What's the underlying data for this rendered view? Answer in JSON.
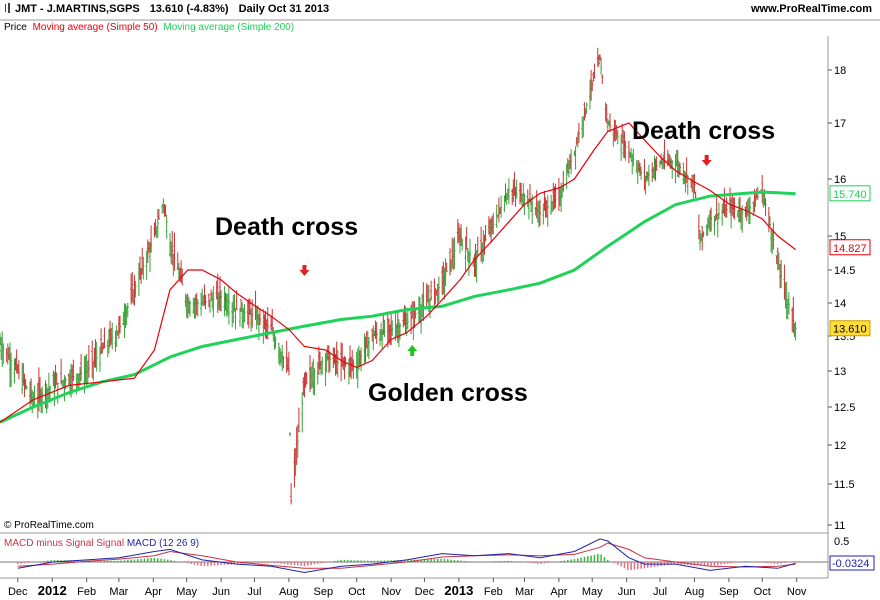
{
  "header": {
    "symbol": "JMT - J.MARTINS,SGPS",
    "quote": "13.610 (-4.83%)",
    "period": "Daily  Oct 31 2013",
    "site": "www.ProRealTime.com"
  },
  "legend": {
    "price": "Price",
    "ma50": "Moving average (Simple 50)",
    "ma200": "Moving average (Simple 200)"
  },
  "copyright": "© ProRealTime.com",
  "macd_legend": {
    "hist": "MACD minus Signal Signal",
    "macd": "MACD (12 26 9)"
  },
  "annotations": {
    "death1": "Death cross",
    "golden": "Golden cross",
    "death2": "Death cross"
  },
  "colors": {
    "ma50": "#e8000b",
    "ma200": "#1fd25a",
    "candle": "#c83232",
    "candle_up": "#3aa03a",
    "last_price_box": "#ffdd33",
    "ma200_label": "#1fd25a",
    "ma50_label": "#e8000b",
    "macd_line": "#2222aa",
    "signal_line": "#cc3344",
    "hist": "#33bb33"
  },
  "chart_data": [
    {
      "type": "line",
      "title": "JMT - J.MARTINS,SGPS",
      "x_ticks": [
        "Dec",
        "2012",
        "Feb",
        "Mar",
        "Apr",
        "May",
        "Jun",
        "Jul",
        "Aug",
        "Sep",
        "Oct",
        "Nov",
        "Dec",
        "2013",
        "Feb",
        "Mar",
        "Apr",
        "May",
        "Jun",
        "Jul",
        "Aug",
        "Sep",
        "Oct",
        "Nov"
      ],
      "y_ticks": [
        11,
        11.5,
        12,
        12.5,
        13,
        13.5,
        14,
        14.5,
        15,
        16,
        17,
        18
      ],
      "ylim": [
        11,
        18.6
      ],
      "series": [
        {
          "name": "Price",
          "x": [
            "2011-11-15",
            "2011-12-01",
            "2011-12-15",
            "2012-01-02",
            "2012-01-16",
            "2012-02-01",
            "2012-02-15",
            "2012-03-01",
            "2012-03-15",
            "2012-04-02",
            "2012-04-10",
            "2012-04-16",
            "2012-05-02",
            "2012-05-15",
            "2012-06-01",
            "2012-06-15",
            "2012-07-02",
            "2012-07-16",
            "2012-08-01",
            "2012-08-03",
            "2012-08-15",
            "2012-09-03",
            "2012-09-17",
            "2012-10-01",
            "2012-10-15",
            "2012-11-01",
            "2012-11-15",
            "2012-12-03",
            "2012-12-17",
            "2013-01-02",
            "2013-01-15",
            "2013-02-01",
            "2013-02-15",
            "2013-03-01",
            "2013-03-15",
            "2013-04-02",
            "2013-04-15",
            "2013-05-02",
            "2013-05-08",
            "2013-05-15",
            "2013-06-03",
            "2013-06-17",
            "2013-07-01",
            "2013-07-15",
            "2013-08-01",
            "2013-08-06",
            "2013-08-15",
            "2013-09-02",
            "2013-09-16",
            "2013-10-01",
            "2013-10-15",
            "2013-10-31"
          ],
          "values": [
            13.4,
            13.0,
            12.6,
            12.8,
            12.9,
            13.0,
            13.3,
            13.6,
            14.2,
            15.0,
            15.6,
            14.9,
            14.0,
            14.0,
            14.1,
            13.9,
            13.8,
            13.6,
            13.0,
            11.3,
            12.8,
            13.2,
            13.1,
            13.1,
            13.5,
            13.6,
            13.7,
            14.0,
            14.3,
            15.0,
            14.6,
            15.2,
            15.8,
            15.7,
            15.4,
            15.7,
            16.5,
            17.8,
            18.2,
            17.0,
            16.5,
            16.0,
            16.3,
            16.3,
            15.9,
            14.9,
            15.3,
            15.5,
            15.4,
            15.8,
            14.6,
            13.61
          ]
        },
        {
          "name": "Moving average (Simple 50)",
          "x": [
            "2011-11-15",
            "2011-12-15",
            "2012-01-16",
            "2012-02-15",
            "2012-03-15",
            "2012-04-02",
            "2012-04-16",
            "2012-05-02",
            "2012-05-15",
            "2012-06-01",
            "2012-06-15",
            "2012-07-02",
            "2012-07-16",
            "2012-08-01",
            "2012-08-15",
            "2012-09-03",
            "2012-09-17",
            "2012-10-01",
            "2012-10-15",
            "2012-11-01",
            "2012-11-15",
            "2012-12-03",
            "2012-12-17",
            "2013-01-02",
            "2013-01-15",
            "2013-02-01",
            "2013-02-15",
            "2013-03-01",
            "2013-03-15",
            "2013-04-02",
            "2013-04-15",
            "2013-05-02",
            "2013-05-15",
            "2013-06-03",
            "2013-06-17",
            "2013-07-01",
            "2013-07-15",
            "2013-08-01",
            "2013-08-15",
            "2013-09-02",
            "2013-09-16",
            "2013-10-01",
            "2013-10-15",
            "2013-10-31"
          ],
          "values": [
            12.3,
            12.6,
            12.8,
            12.85,
            12.9,
            13.3,
            14.2,
            14.5,
            14.5,
            14.35,
            14.15,
            13.95,
            13.8,
            13.6,
            13.35,
            13.3,
            13.15,
            13.05,
            13.15,
            13.45,
            13.55,
            13.8,
            14.05,
            14.35,
            14.65,
            14.95,
            15.25,
            15.55,
            15.75,
            15.85,
            16.0,
            16.5,
            16.85,
            17.0,
            16.7,
            16.4,
            16.15,
            15.95,
            15.8,
            15.55,
            15.45,
            15.3,
            15.0,
            14.8
          ]
        },
        {
          "name": "Moving average (Simple 200)",
          "x": [
            "2011-11-15",
            "2011-12-15",
            "2012-01-16",
            "2012-02-15",
            "2012-03-15",
            "2012-04-16",
            "2012-05-15",
            "2012-06-15",
            "2012-07-16",
            "2012-08-15",
            "2012-09-17",
            "2012-10-15",
            "2012-11-15",
            "2012-12-17",
            "2013-01-15",
            "2013-02-15",
            "2013-03-15",
            "2013-04-15",
            "2013-05-15",
            "2013-06-17",
            "2013-07-15",
            "2013-08-15",
            "2013-09-16",
            "2013-10-01",
            "2013-10-15",
            "2013-10-31"
          ],
          "values": [
            12.3,
            12.5,
            12.7,
            12.85,
            12.95,
            13.2,
            13.35,
            13.45,
            13.55,
            13.65,
            13.75,
            13.8,
            13.9,
            13.95,
            14.1,
            14.2,
            14.3,
            14.5,
            14.85,
            15.25,
            15.55,
            15.7,
            15.75,
            15.77,
            15.76,
            15.74
          ]
        }
      ],
      "price_labels": [
        {
          "value": 15.74,
          "label": "15.740"
        },
        {
          "value": 14.827,
          "label": "14.827"
        },
        {
          "value": 13.61,
          "label": "13.610"
        }
      ],
      "markers": [
        {
          "x": "2012-08-15",
          "direction": "down",
          "label": "Death cross"
        },
        {
          "x": "2012-11-20",
          "direction": "up",
          "label": "Golden cross"
        },
        {
          "x": "2013-08-12",
          "direction": "down",
          "label": "Death cross"
        }
      ]
    },
    {
      "type": "line",
      "title": "MACD (12 26 9)",
      "y_ticks": [
        0.5,
        0
      ],
      "ylim": [
        -0.5,
        0.7
      ],
      "last_value_label": "-0.0324",
      "series": [
        {
          "name": "MACD (12 26 9)",
          "x": [
            "2011-12-01",
            "2012-01-02",
            "2012-02-01",
            "2012-03-01",
            "2012-04-02",
            "2012-04-16",
            "2012-05-15",
            "2012-06-15",
            "2012-07-16",
            "2012-08-15",
            "2012-09-17",
            "2012-10-15",
            "2012-11-15",
            "2012-12-17",
            "2013-01-15",
            "2013-02-15",
            "2013-03-15",
            "2013-04-15",
            "2013-05-08",
            "2013-05-15",
            "2013-06-03",
            "2013-06-17",
            "2013-07-15",
            "2013-08-15",
            "2013-09-16",
            "2013-10-15",
            "2013-10-31"
          ],
          "values": [
            -0.15,
            0.0,
            0.05,
            0.1,
            0.25,
            0.3,
            0.05,
            -0.05,
            -0.1,
            -0.25,
            -0.1,
            -0.05,
            0.05,
            0.2,
            0.15,
            0.2,
            0.1,
            0.25,
            0.55,
            0.5,
            0.1,
            -0.05,
            -0.05,
            -0.2,
            -0.1,
            -0.15,
            -0.03
          ]
        },
        {
          "name": "Signal",
          "x": [
            "2011-12-01",
            "2012-01-02",
            "2012-02-01",
            "2012-03-01",
            "2012-04-02",
            "2012-04-16",
            "2012-05-15",
            "2012-06-15",
            "2012-07-16",
            "2012-08-15",
            "2012-09-17",
            "2012-10-15",
            "2012-11-15",
            "2012-12-17",
            "2013-01-15",
            "2013-02-15",
            "2013-03-15",
            "2013-04-15",
            "2013-05-08",
            "2013-05-15",
            "2013-06-03",
            "2013-06-17",
            "2013-07-15",
            "2013-08-15",
            "2013-09-16",
            "2013-10-15",
            "2013-10-31"
          ],
          "values": [
            -0.1,
            -0.05,
            0.02,
            0.07,
            0.15,
            0.25,
            0.15,
            0.0,
            -0.08,
            -0.15,
            -0.15,
            -0.08,
            0.0,
            0.12,
            0.15,
            0.17,
            0.15,
            0.18,
            0.35,
            0.45,
            0.3,
            0.1,
            0.0,
            -0.1,
            -0.12,
            -0.1,
            -0.05
          ]
        }
      ]
    }
  ]
}
